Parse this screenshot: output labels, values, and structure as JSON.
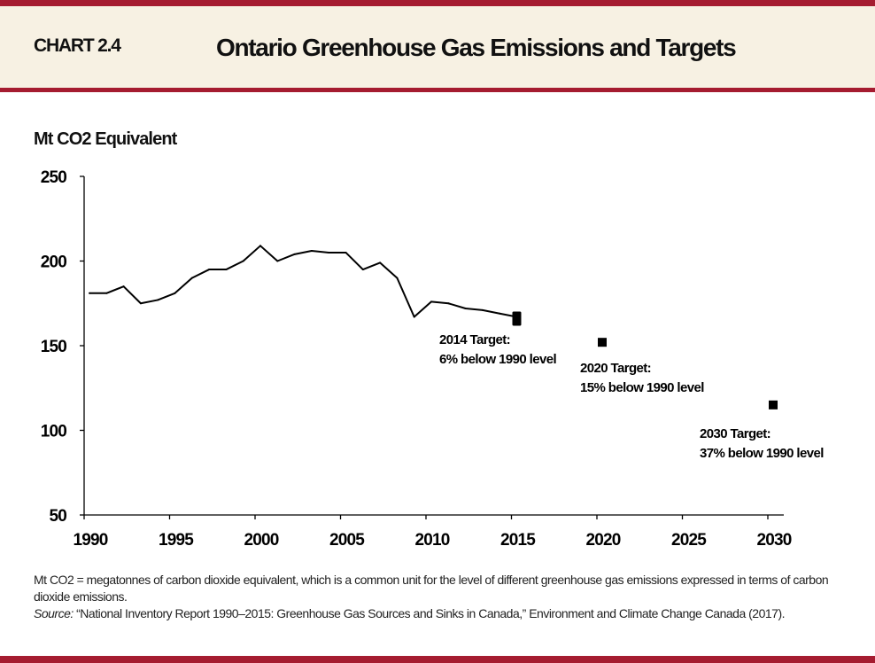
{
  "header": {
    "chart_number": "CHART 2.4",
    "title": "Ontario Greenhouse Gas Emissions and Targets"
  },
  "colors": {
    "brand_red": "#A51C30",
    "header_bg": "#F7F1E3",
    "line": "#000000"
  },
  "chart_data": {
    "type": "line",
    "title": "Ontario Greenhouse Gas Emissions and Targets",
    "ylabel": "Mt CO2 Equivalent",
    "xlabel": "",
    "ylim": [
      50,
      250
    ],
    "xlim": [
      1990,
      2030
    ],
    "y_ticks": [
      "250",
      "200",
      "150",
      "100",
      "50"
    ],
    "x_ticks": [
      "1990",
      "1995",
      "2000",
      "2005",
      "2010",
      "2015",
      "2020",
      "2025",
      "2030"
    ],
    "grid": false,
    "series": [
      {
        "x": [
          1990,
          1991,
          1992,
          1993,
          1994,
          1995,
          1996,
          1997,
          1998,
          1999,
          2000,
          2001,
          2002,
          2003,
          2004,
          2005,
          2006,
          2007,
          2008,
          2009,
          2010,
          2011,
          2012,
          2013,
          2014,
          2015
        ],
        "values": [
          181,
          181,
          185,
          175,
          177,
          181,
          190,
          195,
          195,
          200,
          209,
          200,
          204,
          206,
          205,
          205,
          195,
          199,
          190,
          167,
          176,
          175,
          172,
          171,
          169,
          167
        ]
      }
    ],
    "targets": [
      {
        "x": 2015,
        "value": 166,
        "label_line1": "2014 Target:",
        "label_line2": "6% below 1990 level"
      },
      {
        "x": 2020,
        "value": 152,
        "label_line1": "2020 Target:",
        "label_line2": "15% below 1990 level"
      },
      {
        "x": 2030,
        "value": 115,
        "label_line1": "2030 Target:",
        "label_line2": "37% below 1990 level"
      }
    ]
  },
  "notes": {
    "definition": "Mt CO2  = megatonnes of carbon dioxide equivalent, which is a common unit for the level of different  greenhouse gas emissions expressed in terms of carbon dioxide emissions.",
    "source_label": "Source:",
    "source_text": " “National Inventory Report 1990–2015: Greenhouse Gas Sources and Sinks in Canada,” Environment and Climate Change Canada (2017)."
  }
}
